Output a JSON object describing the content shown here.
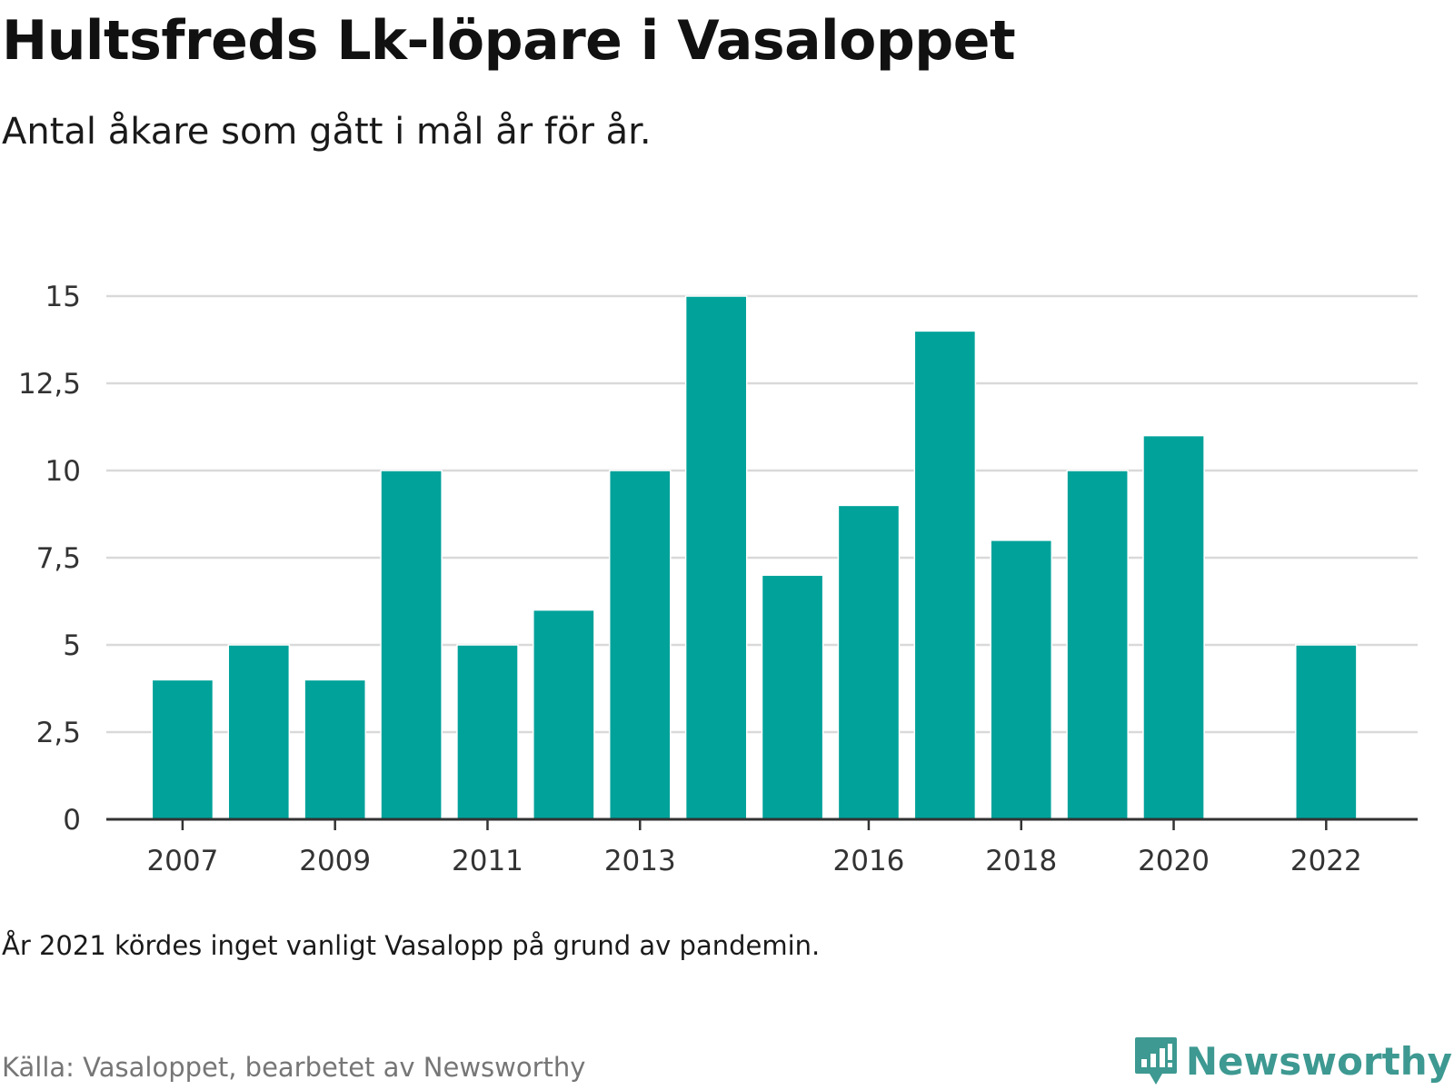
{
  "chart_data": {
    "type": "bar",
    "title": "Hultsfreds Lk-löpare i Vasaloppet",
    "subtitle": "Antal åkare som gått i mål år för år.",
    "xlabel": "",
    "ylabel": "",
    "x": [
      2007,
      2008,
      2009,
      2010,
      2011,
      2012,
      2013,
      2014,
      2015,
      2016,
      2017,
      2018,
      2019,
      2020,
      2022
    ],
    "values": [
      4,
      5,
      4,
      10,
      5,
      6,
      10,
      15,
      7,
      9,
      14,
      8,
      10,
      11,
      5
    ],
    "xlim": [
      2006,
      2023.2
    ],
    "ylim": [
      0,
      15
    ],
    "y_ticks": [
      0,
      2.5,
      5,
      7.5,
      10,
      12.5,
      15
    ],
    "y_tick_labels": [
      "0",
      "2,5",
      "5",
      "7,5",
      "10",
      "12,5",
      "15"
    ],
    "x_ticks": [
      2007,
      2009,
      2011,
      2013,
      2016,
      2018,
      2020,
      2022
    ],
    "x_tick_labels": [
      "2007",
      "2009",
      "2011",
      "2013",
      "2016",
      "2018",
      "2020",
      "2022"
    ],
    "grid": true,
    "bar_color": "#00a29a",
    "grid_color": "#d9d9d9"
  },
  "note": "År 2021 kördes inget vanligt Vasalopp på grund av pandemin.",
  "source": "Källa: Vasaloppet, bearbetet av Newsworthy",
  "brand": {
    "name": "Newsworthy",
    "logo_icon": "bar-chart-speech-bubble-icon",
    "color": "#3d9991"
  }
}
